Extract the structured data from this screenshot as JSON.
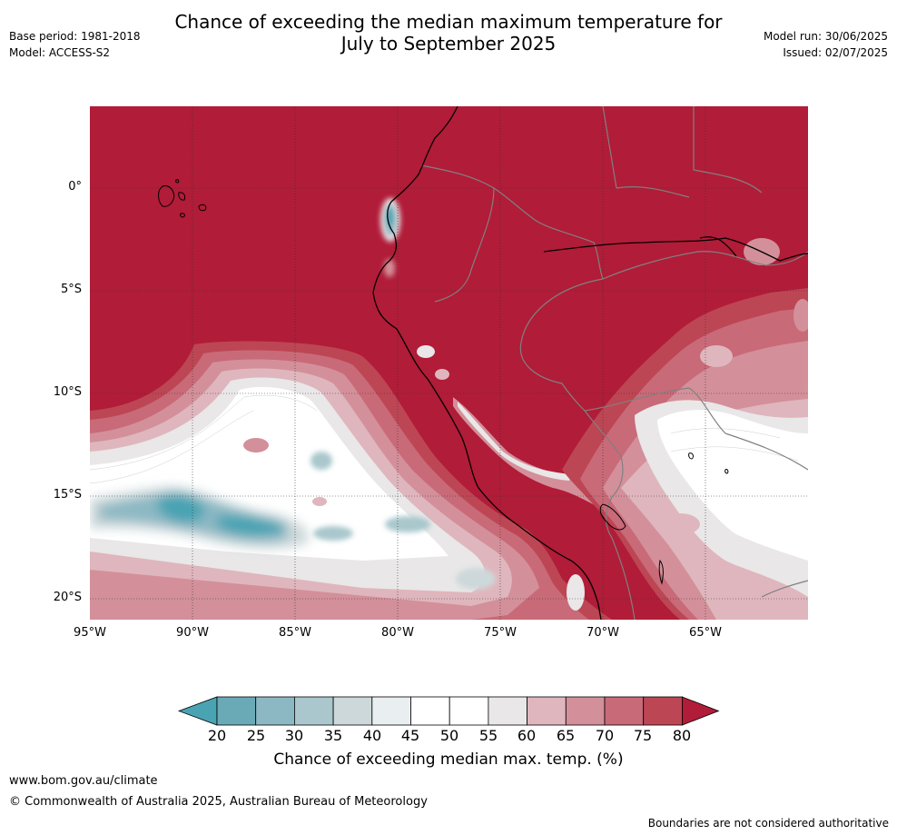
{
  "title": {
    "line1": "Chance of exceeding the median maximum temperature for",
    "line2": "July to September 2025"
  },
  "meta": {
    "base_period": "Base period: 1981-2018",
    "model": "Model: ACCESS-S2",
    "model_run": "Model run: 30/06/2025",
    "issued": "Issued: 02/07/2025"
  },
  "map": {
    "region": "northwestern South America and eastern Pacific",
    "lat_labels": [
      "0°",
      "5°S",
      "10°S",
      "15°S",
      "20°S"
    ],
    "lon_labels": [
      "95°W",
      "90°W",
      "85°W",
      "80°W",
      "75°W",
      "70°W",
      "65°W"
    ],
    "dominant_category_percent": 80
  },
  "colorbar": {
    "ticks": [
      "20",
      "25",
      "30",
      "35",
      "40",
      "45",
      "50",
      "55",
      "60",
      "65",
      "70",
      "75",
      "80"
    ],
    "colors": [
      "#4aa3b3",
      "#6aaab7",
      "#8bb8c3",
      "#a9c7cc",
      "#cdd8da",
      "#e9eef0",
      "#ffffff",
      "#ffffff",
      "#e9e7e8",
      "#dfb6bd",
      "#d3909a",
      "#c96a78",
      "#bd4654",
      "#b11c38"
    ],
    "title": "Chance of exceeding median max. temp. (%)"
  },
  "colors": {
    "high": "#b11c38",
    "low": "#4aa3b3",
    "coast": "#000000",
    "border": "#808080"
  },
  "footer": {
    "url": "www.bom.gov.au/climate",
    "copyright": "© Commonwealth of Australia 2025, Australian Bureau of Meteorology",
    "disclaimer": "Boundaries are not considered authoritative"
  }
}
